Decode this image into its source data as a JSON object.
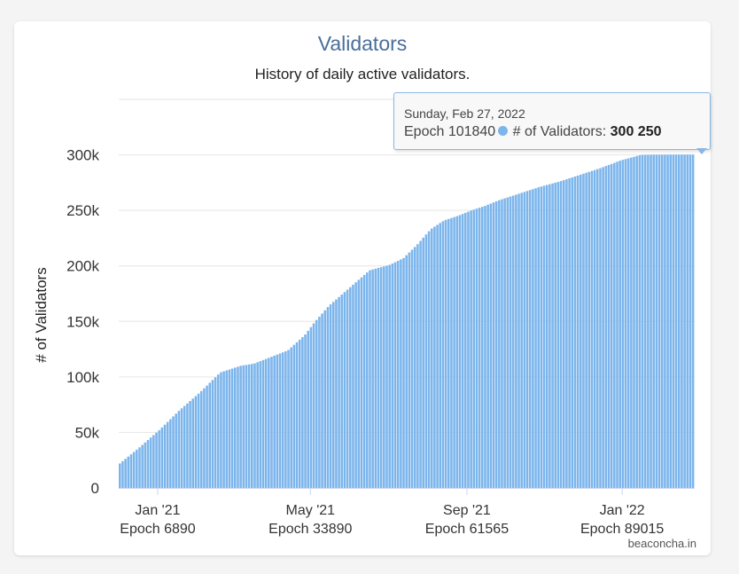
{
  "chart_data": {
    "type": "bar",
    "title": "Validators",
    "subtitle": "History of daily active validators.",
    "ylabel": "# of Validators",
    "xlabel": "",
    "ylim": [
      0,
      350000
    ],
    "yticks": [
      0,
      50000,
      100000,
      150000,
      200000,
      250000,
      300000
    ],
    "ytick_labels": [
      "0",
      "50k",
      "100k",
      "150k",
      "200k",
      "250k",
      "300k"
    ],
    "xticks": [
      {
        "epoch": 6890,
        "line1": "Jan '21",
        "line2": "Epoch 6890"
      },
      {
        "epoch": 33890,
        "line1": "May '21",
        "line2": "Epoch 33890"
      },
      {
        "epoch": 61565,
        "line1": "Sep '21",
        "line2": "Epoch 61565"
      },
      {
        "epoch": 89015,
        "line1": "Jan '22",
        "line2": "Epoch 89015"
      }
    ],
    "grid": true,
    "color": "#7cb5ec",
    "x_range": [
      0,
      101840
    ],
    "series": [
      {
        "x": [
          0,
          3600,
          7200,
          10800,
          14400,
          18000,
          21600,
          24000,
          27000,
          30000,
          33000,
          34800,
          37200,
          40800,
          44400,
          48000,
          50400,
          52800,
          55200,
          57600,
          60000,
          62400,
          64800,
          67200,
          70800,
          74400,
          78000,
          81600,
          85200,
          88800,
          92400,
          96000,
          99000,
          101840
        ],
        "values": [
          21000,
          36000,
          52000,
          70000,
          86000,
          104000,
          110000,
          112000,
          118000,
          124000,
          138000,
          150000,
          164000,
          180000,
          196000,
          201000,
          207000,
          219000,
          233000,
          241000,
          245000,
          250000,
          254000,
          259000,
          265000,
          271000,
          276000,
          282000,
          288000,
          295000,
          300000,
          300250,
          300250,
          300250
        ]
      }
    ],
    "tooltip": {
      "date": "Sunday, Feb 27, 2022",
      "epoch_label": "Epoch 101840",
      "series_label": "# of Validators:",
      "value_label": "300 250"
    }
  },
  "credit": "beaconcha.in"
}
